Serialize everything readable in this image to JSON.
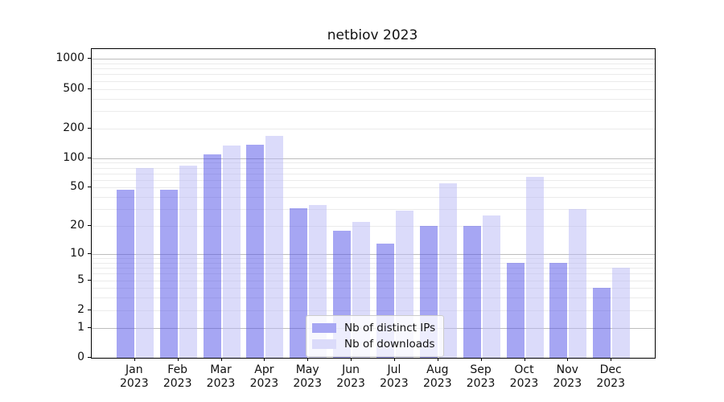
{
  "chart_data": {
    "type": "bar",
    "title": "netbiov 2023",
    "categories": [
      {
        "month": "Jan",
        "year": "2023"
      },
      {
        "month": "Feb",
        "year": "2023"
      },
      {
        "month": "Mar",
        "year": "2023"
      },
      {
        "month": "Apr",
        "year": "2023"
      },
      {
        "month": "May",
        "year": "2023"
      },
      {
        "month": "Jun",
        "year": "2023"
      },
      {
        "month": "Jul",
        "year": "2023"
      },
      {
        "month": "Aug",
        "year": "2023"
      },
      {
        "month": "Sep",
        "year": "2023"
      },
      {
        "month": "Oct",
        "year": "2023"
      },
      {
        "month": "Nov",
        "year": "2023"
      },
      {
        "month": "Dec",
        "year": "2023"
      }
    ],
    "series": [
      {
        "name": "Nb of distinct IPs",
        "color": "rgba(77,77,231,0.5)",
        "legend_color": "#a6a6f3",
        "values": [
          48,
          48,
          110,
          136,
          31,
          18,
          13,
          20,
          20,
          8,
          8,
          4
        ]
      },
      {
        "name": "Nb of downloads",
        "color": "rgba(183,183,245,0.5)",
        "legend_color": "#dbdbfa",
        "values": [
          80,
          84,
          135,
          167,
          33,
          22,
          29,
          56,
          26,
          64,
          30,
          7
        ]
      }
    ],
    "yscale": "log1p",
    "ylim": [
      0,
      1256
    ],
    "yticks": [
      1000,
      500,
      200,
      100,
      50,
      20,
      10,
      5,
      2,
      1,
      0
    ],
    "major_gridlines": [
      1,
      10,
      100,
      1000
    ],
    "grid": "on",
    "legend_position": "lower center",
    "axis_color": "#000000",
    "major_grid_color": "#bdbdbd",
    "minor_grid_color": "#ebebeb"
  }
}
